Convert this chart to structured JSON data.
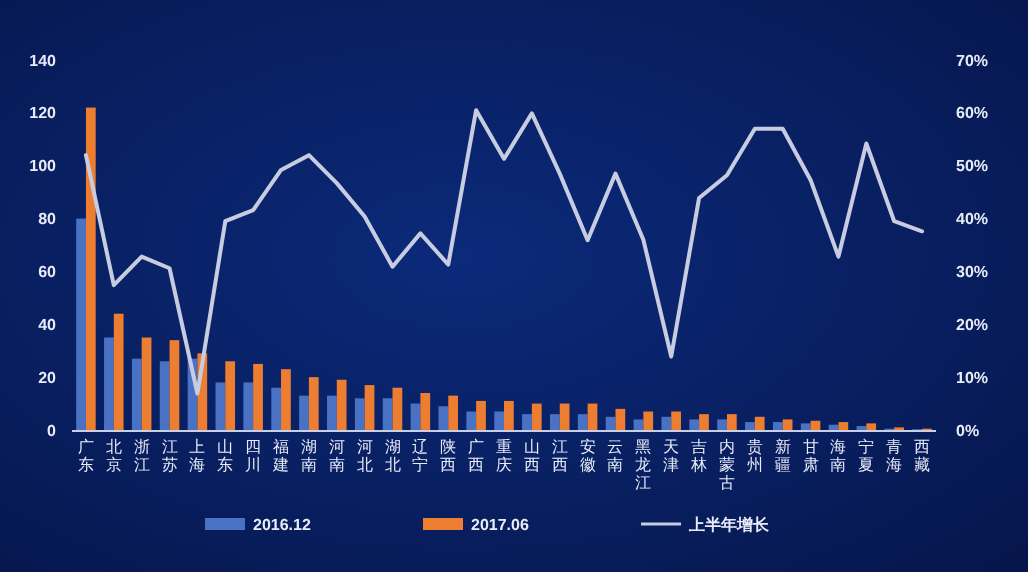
{
  "chart_data": {
    "type": "bar",
    "categories": [
      "广东",
      "北京",
      "浙江",
      "江苏",
      "上海",
      "山东",
      "四川",
      "福建",
      "湖南",
      "河南",
      "河北",
      "湖北",
      "辽宁",
      "陕西",
      "广西",
      "重庆",
      "山西",
      "江西",
      "安徽",
      "云南",
      "黑龙江",
      "天津",
      "吉林",
      "内蒙古",
      "贵州",
      "新疆",
      "甘肃",
      "海南",
      "宁夏",
      "青海",
      "西藏"
    ],
    "series": [
      {
        "name": "2016.12",
        "color": "#4a72c4",
        "values": [
          80,
          35,
          27,
          26,
          27,
          18,
          18,
          16,
          13,
          13,
          12,
          12,
          10,
          9,
          7,
          7,
          6,
          6,
          6,
          5,
          4,
          5,
          4,
          4,
          3,
          3,
          2.5,
          2,
          1.5,
          0.5,
          0.3
        ]
      },
      {
        "name": "2017.06",
        "color": "#ed7d31",
        "values": [
          122,
          44,
          35,
          34,
          29,
          26,
          25,
          23,
          20,
          19,
          17,
          16,
          14,
          13,
          11,
          11,
          10,
          10,
          10,
          8,
          7,
          7,
          6,
          6,
          5,
          4,
          3.5,
          3,
          2.5,
          1,
          0.5
        ]
      },
      {
        "name": "上半年增长",
        "type": "line",
        "axis": "y2",
        "color": "#c8cce0",
        "values": [
          52,
          27.4,
          32.8,
          30.6,
          6.9,
          39.5,
          41.6,
          49.2,
          52,
          46.7,
          40.4,
          30.9,
          37.2,
          31.3,
          60.5,
          51.3,
          59.9,
          48.5,
          35.9,
          48.5,
          36,
          13.9,
          43.9,
          48.2,
          57,
          57,
          47.3,
          32.8,
          54.2,
          39.5,
          37.6
        ]
      }
    ],
    "ylim": [
      0,
      140
    ],
    "yticks": [
      0,
      20,
      40,
      60,
      80,
      100,
      120,
      140
    ],
    "y2lim": [
      0,
      70
    ],
    "y2ticks": [
      {
        "value": 0,
        "label": "0%"
      },
      {
        "value": 10,
        "label": "10%"
      },
      {
        "value": 20,
        "label": "20%"
      },
      {
        "value": 30,
        "label": "30%"
      },
      {
        "value": 40,
        "label": "40%"
      },
      {
        "value": 50,
        "label": "50%"
      },
      {
        "value": 60,
        "label": "60%"
      },
      {
        "value": 70,
        "label": "70%"
      }
    ],
    "grid": false,
    "legend": "bottom"
  }
}
